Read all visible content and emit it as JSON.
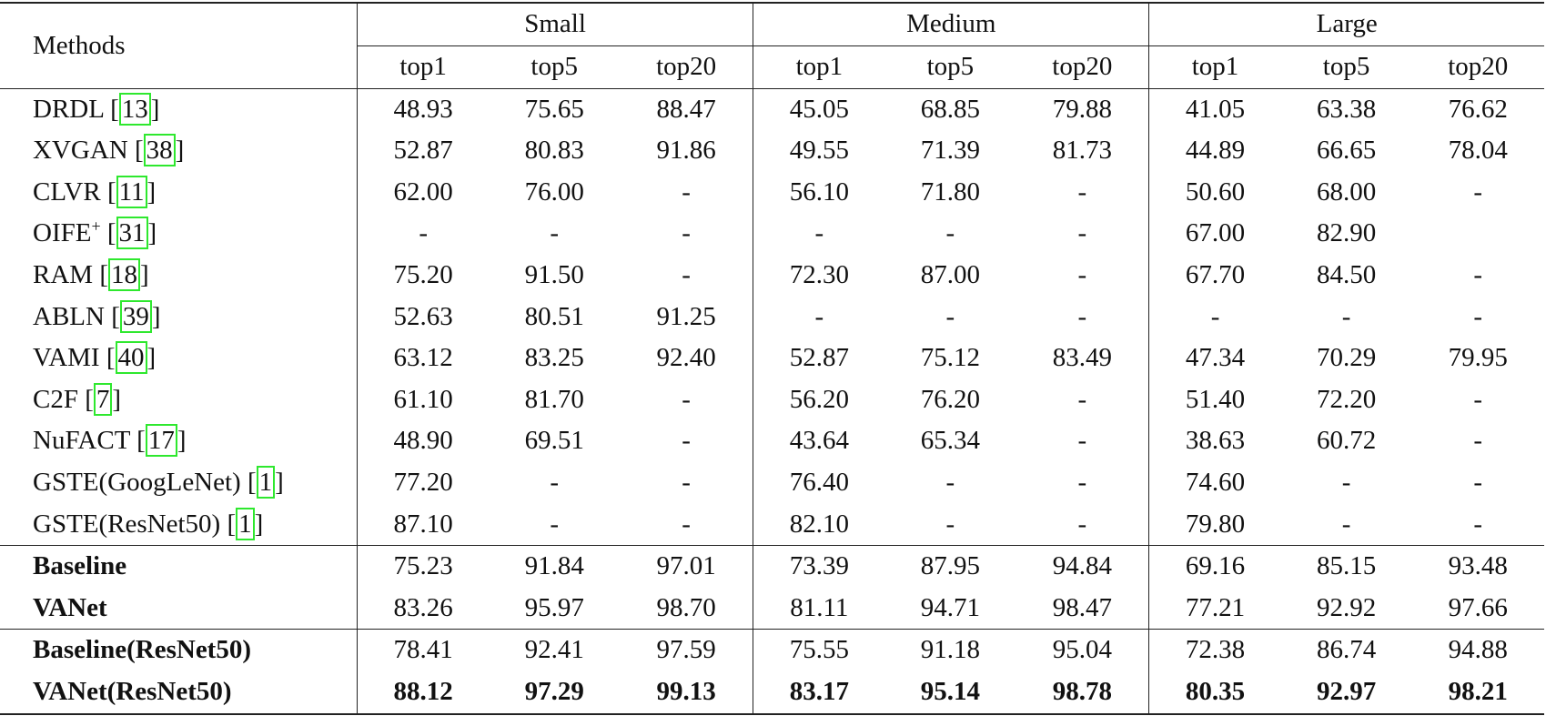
{
  "header": {
    "methods": "Methods",
    "groups": [
      "Small",
      "Medium",
      "Large"
    ],
    "metrics": [
      "top1",
      "top5",
      "top20"
    ]
  },
  "rows": [
    {
      "name": "DRDL",
      "cite": "13",
      "values": [
        "48.93",
        "75.65",
        "88.47",
        "45.05",
        "68.85",
        "79.88",
        "41.05",
        "63.38",
        "76.62"
      ]
    },
    {
      "name": "XVGAN",
      "cite": "38",
      "values": [
        "52.87",
        "80.83",
        "91.86",
        "49.55",
        "71.39",
        "81.73",
        "44.89",
        "66.65",
        "78.04"
      ]
    },
    {
      "name": "CLVR",
      "cite": "11",
      "values": [
        "62.00",
        "76.00",
        "-",
        "56.10",
        "71.80",
        "-",
        "50.60",
        "68.00",
        "-"
      ]
    },
    {
      "name": "OIFE",
      "sup": "+",
      "cite": "31",
      "values": [
        "-",
        "-",
        "-",
        "-",
        "-",
        "-",
        "67.00",
        "82.90",
        ""
      ]
    },
    {
      "name": "RAM",
      "cite": "18",
      "values": [
        "75.20",
        "91.50",
        "-",
        "72.30",
        "87.00",
        "-",
        "67.70",
        "84.50",
        "-"
      ]
    },
    {
      "name": "ABLN",
      "cite": "39",
      "values": [
        "52.63",
        "80.51",
        "91.25",
        "-",
        "-",
        "-",
        "-",
        "-",
        "-"
      ]
    },
    {
      "name": "VAMI",
      "cite": "40",
      "values": [
        "63.12",
        "83.25",
        "92.40",
        "52.87",
        "75.12",
        "83.49",
        "47.34",
        "70.29",
        "79.95"
      ]
    },
    {
      "name": "C2F",
      "cite": "7",
      "values": [
        "61.10",
        "81.70",
        "-",
        "56.20",
        "76.20",
        "-",
        "51.40",
        "72.20",
        "-"
      ]
    },
    {
      "name": "NuFACT",
      "cite": "17",
      "values": [
        "48.90",
        "69.51",
        "-",
        "43.64",
        "65.34",
        "-",
        "38.63",
        "60.72",
        "-"
      ]
    },
    {
      "name": "GSTE(GoogLeNet)",
      "cite": "1",
      "values": [
        "77.20",
        "-",
        "-",
        "76.40",
        "-",
        "-",
        "74.60",
        "-",
        "-"
      ]
    },
    {
      "name": "GSTE(ResNet50)",
      "cite": "1",
      "values": [
        "87.10",
        "-",
        "-",
        "82.10",
        "-",
        "-",
        "79.80",
        "-",
        "-"
      ]
    }
  ],
  "ours1": [
    {
      "name": "Baseline",
      "values": [
        "75.23",
        "91.84",
        "97.01",
        "73.39",
        "87.95",
        "94.84",
        "69.16",
        "85.15",
        "93.48"
      ]
    },
    {
      "name": "VANet",
      "values": [
        "83.26",
        "95.97",
        "98.70",
        "81.11",
        "94.71",
        "98.47",
        "77.21",
        "92.92",
        "97.66"
      ]
    }
  ],
  "ours2": [
    {
      "name": "Baseline(ResNet50)",
      "values": [
        "78.41",
        "92.41",
        "97.59",
        "75.55",
        "91.18",
        "95.04",
        "72.38",
        "86.74",
        "94.88"
      ]
    },
    {
      "name": "VANet(ResNet50)",
      "bold_values": true,
      "values": [
        "88.12",
        "97.29",
        "99.13",
        "83.17",
        "95.14",
        "98.78",
        "80.35",
        "92.97",
        "98.21"
      ]
    }
  ],
  "colors": {
    "citation_box": "#2ee82e",
    "rule": "#222222"
  }
}
